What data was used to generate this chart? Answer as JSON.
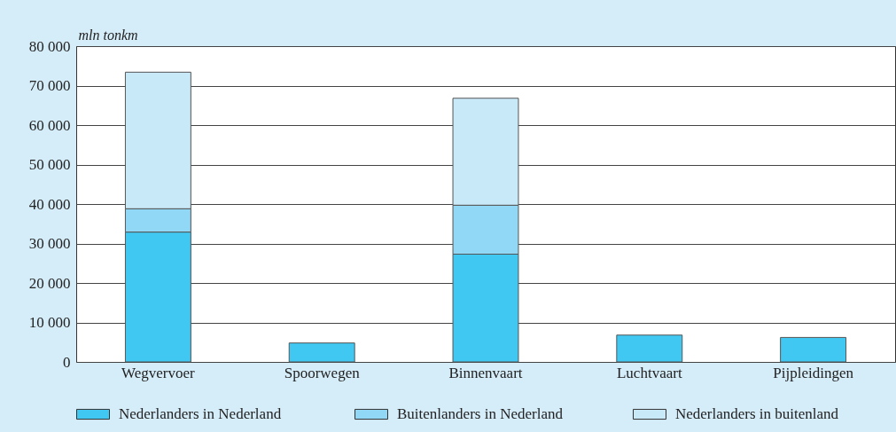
{
  "chart_data": {
    "type": "bar",
    "ylabel": "mln tonkm",
    "categories": [
      "Wegvervoer",
      "Spoorwegen",
      "Binnenvaart",
      "Luchtvaart",
      "Pijpleidingen"
    ],
    "stacked": true,
    "series": [
      {
        "name": "Nederlanders in Nederland",
        "color": "#40c8f2",
        "values": [
          32900,
          4800,
          27300,
          6800,
          6200
        ]
      },
      {
        "name": "Buitenlanders in Nederland",
        "color": "#90d8f5",
        "values": [
          5900,
          null,
          12400,
          null,
          null
        ]
      },
      {
        "name": "Nederlanders in buitenland",
        "color": "#c8e9f8",
        "values": [
          34600,
          null,
          27100,
          null,
          null
        ]
      }
    ],
    "ylim": [
      0,
      80000
    ],
    "yticks": [
      0,
      {
        "value": 10000,
        "label": "10 000"
      },
      {
        "value": 20000,
        "label": "20 000"
      },
      {
        "value": 30000,
        "label": "30 000"
      },
      {
        "value": 40000,
        "label": "40 000"
      },
      {
        "value": 50000,
        "label": "50 000"
      },
      {
        "value": 60000,
        "label": "60 000"
      },
      {
        "value": 70000,
        "label": "70 000"
      },
      {
        "value": 80000,
        "label": "80 000"
      }
    ],
    "grid": "y",
    "legend": "bottom"
  }
}
